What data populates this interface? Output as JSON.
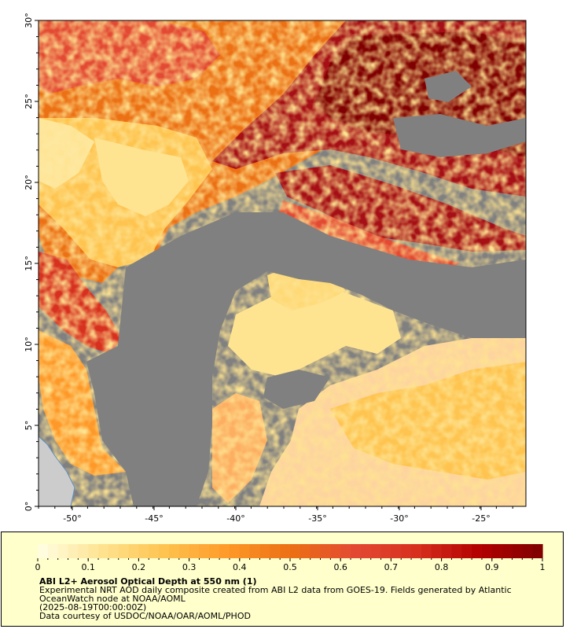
{
  "map": {
    "lon_ticks": [
      "-50°",
      "-45°",
      "-40°",
      "-35°",
      "-30°",
      "-25°"
    ],
    "lat_ticks": [
      "0°",
      "5°",
      "10°",
      "15°",
      "20°",
      "25°",
      "30°"
    ],
    "colors": {
      "no_data": "#808080",
      "land": "#cccccc",
      "coast": "#5f8fc0"
    }
  },
  "legend": {
    "title": "ABI L2+ Aerosol Optical Depth at 550 nm (1)",
    "description": "Experimental NRT AOD daily composite created from ABI L2 data from GOES-19. Fields generated by Atlantic OceanWatch node at NOAA/AOML",
    "date": "(2025-08-19T00:00:00Z)",
    "credit": "Data courtesy of USDOC/NOAA/OAR/AOML/PHOD",
    "tick_labels": [
      "0",
      "0.1",
      "0.2",
      "0.3",
      "0.4",
      "0.5",
      "0.6",
      "0.7",
      "0.8",
      "0.9",
      "1"
    ],
    "range": [
      0,
      1
    ],
    "colormap": [
      "#ffffe5",
      "#fee391",
      "#fec44f",
      "#fe9929",
      "#ec7014",
      "#e34a33",
      "#d7301f",
      "#b30000",
      "#7f0000"
    ]
  }
}
